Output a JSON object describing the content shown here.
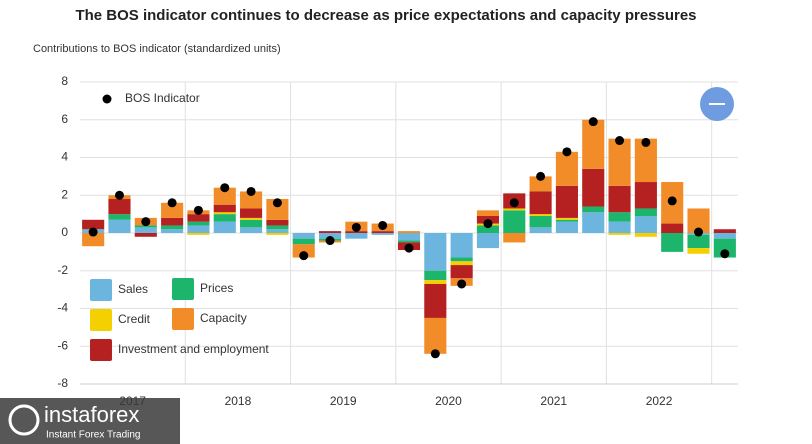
{
  "chart_data": {
    "type": "stacked-bar-dot",
    "title": "The BOS indicator continues to decrease as price expectations and capacity pressures",
    "y_label": "Contributions to BOS indicator (standardized units)",
    "categories": [
      null,
      null,
      null,
      null,
      null,
      null,
      null,
      null,
      null,
      null,
      null,
      null,
      null,
      null,
      null,
      null,
      null,
      null,
      null,
      null,
      null,
      null,
      null,
      null,
      null
    ],
    "year_labels": [
      "2017",
      "2018",
      "2019",
      "2020",
      "2021",
      "2022"
    ],
    "ylim": [
      -8,
      8
    ],
    "yticks": [
      -8,
      -6,
      -4,
      -2,
      0,
      2,
      4,
      6,
      8
    ],
    "grid": true,
    "series": [
      {
        "name": "Sales",
        "color": "#6bb5de",
        "values": [
          0.2,
          0.7,
          0.3,
          0.2,
          0.4,
          0.6,
          0.3,
          0.2,
          -0.3,
          -0.3,
          -0.3,
          -0.1,
          -0.4,
          -2.0,
          -1.3,
          -0.8,
          0,
          0.3,
          0.6,
          1.1,
          0.6,
          0.9,
          0,
          -0.1,
          -0.3
        ]
      },
      {
        "name": "Prices",
        "color": "#1db56b",
        "values": [
          0,
          0.3,
          0.1,
          0.2,
          0.2,
          0.4,
          0.4,
          0.2,
          -0.3,
          -0.1,
          0,
          0,
          -0.1,
          -0.5,
          -0.2,
          0.4,
          1.2,
          0.6,
          0.1,
          0.3,
          0.5,
          0.4,
          -1.0,
          -0.7,
          -1.0
        ]
      },
      {
        "name": "Credit",
        "color": "#f5d000",
        "values": [
          0,
          0,
          0,
          0,
          -0.1,
          0.1,
          0.1,
          -0.1,
          0,
          0,
          0,
          0,
          0,
          -0.2,
          -0.2,
          0.1,
          0.1,
          0.1,
          0.1,
          0,
          -0.1,
          -0.2,
          0,
          -0.3,
          0
        ]
      },
      {
        "name": "Investment and employment",
        "color": "#b52020",
        "values": [
          0.5,
          0.8,
          -0.2,
          0.4,
          0.4,
          0.4,
          0.5,
          0.3,
          0,
          0.1,
          0.1,
          0.1,
          -0.4,
          -1.8,
          -0.7,
          0.4,
          0.8,
          1.2,
          1.7,
          2.0,
          1.4,
          1.4,
          0.5,
          0,
          0.2
        ]
      },
      {
        "name": "Capacity",
        "color": "#f28c28",
        "values": [
          -0.7,
          0.2,
          0.4,
          0.8,
          0.2,
          0.9,
          0.9,
          1.1,
          -0.7,
          -0.1,
          0.5,
          0.4,
          0.1,
          -1.9,
          -0.4,
          0.3,
          -0.5,
          0.8,
          1.8,
          2.6,
          2.5,
          2.3,
          2.2,
          1.3,
          0
        ]
      }
    ],
    "indicator": {
      "name": "BOS Indicator",
      "color": "#000000",
      "values": [
        0.05,
        2.0,
        0.6,
        1.6,
        1.2,
        2.4,
        2.2,
        1.6,
        -1.2,
        -0.4,
        0.3,
        0.4,
        -0.8,
        -6.4,
        -2.7,
        0.5,
        1.6,
        3.0,
        4.3,
        5.9,
        4.9,
        4.8,
        1.7,
        0.05,
        -1.1
      ]
    }
  },
  "watermark": {
    "name": "instaforex",
    "tagline": "Instant Forex Trading"
  }
}
